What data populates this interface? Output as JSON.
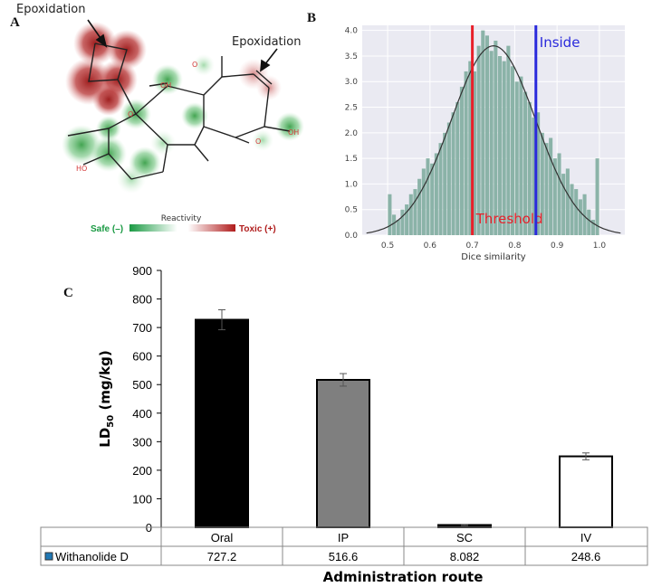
{
  "panels": {
    "a": "A",
    "b": "B",
    "c": "C"
  },
  "panel_a": {
    "annotations": [
      "Epoxidation",
      "Epoxidation"
    ],
    "scale_title": "Reactivity",
    "safe_label": "Safe (–)",
    "toxic_label": "Toxic (+)",
    "atom_labels": [
      "O",
      "OH",
      "O",
      "O",
      "OH",
      "HO"
    ],
    "colors": {
      "safe": "#2ea84a",
      "toxic": "#b01c1c"
    }
  },
  "chart_data": [
    {
      "type": "bar",
      "panel": "B",
      "title": "",
      "xlabel": "Dice similarity",
      "ylabel": "",
      "xlim": [
        0.44,
        1.06
      ],
      "ylim": [
        0,
        4.1
      ],
      "bin_width": 0.01,
      "bins_start": [
        0.5,
        0.51,
        0.52,
        0.53,
        0.54,
        0.55,
        0.56,
        0.57,
        0.58,
        0.59,
        0.6,
        0.61,
        0.62,
        0.63,
        0.64,
        0.65,
        0.66,
        0.67,
        0.68,
        0.69,
        0.7,
        0.71,
        0.72,
        0.73,
        0.74,
        0.75,
        0.76,
        0.77,
        0.78,
        0.79,
        0.8,
        0.81,
        0.82,
        0.83,
        0.84,
        0.85,
        0.86,
        0.87,
        0.88,
        0.89,
        0.9,
        0.91,
        0.92,
        0.93,
        0.94,
        0.95,
        0.96,
        0.97,
        0.98,
        0.99
      ],
      "values": [
        0.8,
        0.4,
        0.3,
        0.5,
        0.6,
        0.8,
        0.9,
        1.1,
        1.3,
        1.5,
        1.4,
        1.6,
        1.8,
        2.0,
        2.2,
        2.4,
        2.6,
        2.9,
        3.2,
        3.4,
        3.2,
        3.7,
        4.0,
        3.9,
        3.6,
        3.8,
        3.5,
        3.4,
        3.7,
        3.3,
        3.0,
        3.1,
        2.8,
        2.6,
        2.3,
        2.4,
        2.0,
        1.8,
        1.9,
        1.5,
        1.6,
        1.2,
        1.3,
        1.0,
        0.9,
        0.7,
        0.8,
        0.5,
        0.3,
        1.5
      ],
      "fit_curve": {
        "mean": 0.75,
        "sd": 0.1,
        "peak": 3.7
      },
      "xticks": [
        "0.5",
        "0.6",
        "0.7",
        "0.8",
        "0.9",
        "1.0"
      ],
      "yticks": [
        "0.0",
        "0.5",
        "1.0",
        "1.5",
        "2.0",
        "2.5",
        "3.0",
        "3.5",
        "4.0"
      ],
      "lines": [
        {
          "name": "Threshold",
          "x": 0.7,
          "color": "#e8202a"
        },
        {
          "name": "Inside",
          "x": 0.85,
          "color": "#2a2adc"
        }
      ],
      "colors": {
        "bars": "#8bb3a8",
        "curve": "#333333",
        "panel_bg": "#eaeaf2"
      },
      "grid": true
    },
    {
      "type": "bar",
      "panel": "C",
      "title": "",
      "xlabel": "Administration route",
      "ylabel": "LD",
      "ylabel_sub": "50",
      "ylabel_unit": " (mg/kg)",
      "ylim": [
        0,
        900
      ],
      "yticks": [
        "0",
        "100",
        "200",
        "300",
        "400",
        "500",
        "600",
        "700",
        "800",
        "900"
      ],
      "categories": [
        "Oral",
        "IP",
        "SC",
        "IV"
      ],
      "series": [
        {
          "name": "Withanolide D",
          "values": [
            727.2,
            516.6,
            8.082,
            248.6
          ]
        }
      ],
      "table_values": [
        "727.2",
        "516.6",
        "8.082",
        "248.6"
      ],
      "error": [
        35,
        22,
        2,
        12
      ],
      "bar_colors": [
        "#000000",
        "#7f7f7f",
        "#000000",
        "#ffffff"
      ],
      "grid": false
    }
  ]
}
